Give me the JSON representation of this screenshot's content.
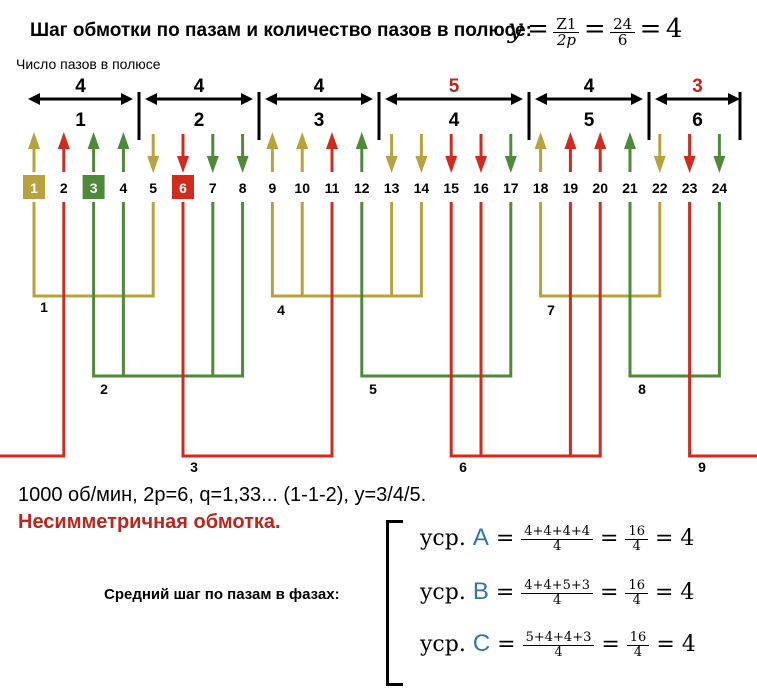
{
  "header": {
    "title": "Шаг обмотки по пазам и количество пазов в полюсе:",
    "formula_y": "y",
    "formula_num": "Z1",
    "formula_den": "2p",
    "formula_num2": "24",
    "formula_den2": "6",
    "formula_result": "4",
    "subtitle": "Число пазов в полюсе"
  },
  "poles": [
    {
      "count": "4",
      "number": "1",
      "color": "#000000"
    },
    {
      "count": "4",
      "number": "2",
      "color": "#000000"
    },
    {
      "count": "4",
      "number": "3",
      "color": "#000000"
    },
    {
      "count": "5",
      "number": "4",
      "color": "#c0241c"
    },
    {
      "count": "4",
      "number": "5",
      "color": "#000000"
    },
    {
      "count": "3",
      "number": "6",
      "color": "#c0241c"
    }
  ],
  "slots": [
    {
      "label": "1",
      "color": "#b9a13c",
      "dir": "up",
      "boxed": true
    },
    {
      "label": "2",
      "color": "#d42a1e",
      "dir": "up",
      "boxed": false
    },
    {
      "label": "3",
      "color": "#4e8a3a",
      "dir": "up",
      "boxed": true
    },
    {
      "label": "4",
      "color": "#4e8a3a",
      "dir": "up",
      "boxed": false
    },
    {
      "label": "5",
      "color": "#b9a13c",
      "dir": "down",
      "boxed": false
    },
    {
      "label": "6",
      "color": "#d42a1e",
      "dir": "down",
      "boxed": true
    },
    {
      "label": "7",
      "color": "#4e8a3a",
      "dir": "down",
      "boxed": false
    },
    {
      "label": "8",
      "color": "#4e8a3a",
      "dir": "down",
      "boxed": false
    },
    {
      "label": "9",
      "color": "#b9a13c",
      "dir": "up",
      "boxed": false
    },
    {
      "label": "10",
      "color": "#b9a13c",
      "dir": "up",
      "boxed": false
    },
    {
      "label": "11",
      "color": "#d42a1e",
      "dir": "up",
      "boxed": false
    },
    {
      "label": "12",
      "color": "#4e8a3a",
      "dir": "up",
      "boxed": false
    },
    {
      "label": "13",
      "color": "#b9a13c",
      "dir": "down",
      "boxed": false
    },
    {
      "label": "14",
      "color": "#b9a13c",
      "dir": "down",
      "boxed": false
    },
    {
      "label": "15",
      "color": "#d42a1e",
      "dir": "down",
      "boxed": false
    },
    {
      "label": "16",
      "color": "#d42a1e",
      "dir": "down",
      "boxed": false
    },
    {
      "label": "17",
      "color": "#4e8a3a",
      "dir": "down",
      "boxed": false
    },
    {
      "label": "18",
      "color": "#b9a13c",
      "dir": "up",
      "boxed": false
    },
    {
      "label": "19",
      "color": "#d42a1e",
      "dir": "up",
      "boxed": false
    },
    {
      "label": "20",
      "color": "#d42a1e",
      "dir": "up",
      "boxed": false
    },
    {
      "label": "21",
      "color": "#4e8a3a",
      "dir": "up",
      "boxed": false
    },
    {
      "label": "22",
      "color": "#b9a13c",
      "dir": "down",
      "boxed": false
    },
    {
      "label": "23",
      "color": "#d42a1e",
      "dir": "down",
      "boxed": false
    },
    {
      "label": "24",
      "color": "#4e8a3a",
      "dir": "down",
      "boxed": false
    }
  ],
  "coil_labels": [
    "1",
    "2",
    "3",
    "4",
    "5",
    "6",
    "7",
    "8",
    "9"
  ],
  "info_line": "1000 об/мин, 2p=6, q=1,33... (1-1-2), y=3/4/5.",
  "warning": "Несимметричная обмотка.",
  "avg": {
    "label": "Средний шаг по пазам в фазах:",
    "ycp": "yср.",
    "rows": [
      {
        "phase": "A",
        "num": "4+4+4+4",
        "den": "4",
        "num2": "16",
        "den2": "4",
        "result": "4"
      },
      {
        "phase": "B",
        "num": "4+4+5+3",
        "den": "4",
        "num2": "16",
        "den2": "4",
        "result": "4"
      },
      {
        "phase": "C",
        "num": "5+4+4+3",
        "den": "4",
        "num2": "16",
        "den2": "4",
        "result": "4"
      }
    ]
  },
  "colors": {
    "yellow": "#b9a13c",
    "green": "#4e8a3a",
    "red": "#d42a1e"
  }
}
